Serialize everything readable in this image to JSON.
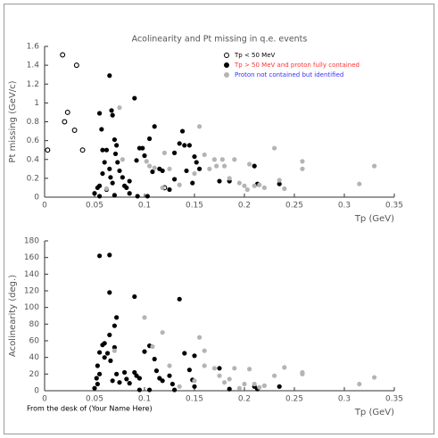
{
  "chart_data": [
    {
      "type": "scatter",
      "title": "Acolinearity and Pt missing in q.e. events",
      "x_label": "Tp (GeV)",
      "y_label": "Pt missing (GeV/c)",
      "xlim": [
        0,
        0.35
      ],
      "ylim": [
        0,
        1.6
      ],
      "xticks": [
        0,
        0.05,
        0.1,
        0.15,
        0.2,
        0.25,
        0.3,
        0.35
      ],
      "yticks": [
        0,
        0.2,
        0.4,
        0.6,
        0.8,
        1,
        1.2,
        1.4,
        1.6
      ],
      "series": [
        {
          "name": "Tp < 50 MeV",
          "color": "#000000",
          "marker": "open",
          "legend_text_color": "#000000",
          "x": [
            0.003,
            0.018,
            0.032,
            0.02,
            0.023,
            0.03,
            0.038,
            0.12
          ],
          "y": [
            0.5,
            1.51,
            1.4,
            0.8,
            0.9,
            0.71,
            0.5,
            0.1
          ]
        },
        {
          "name": "Tp > 50 MeV and proton fully contained",
          "color": "#000000",
          "marker": "filled",
          "legend_text_color": "#ff3333",
          "x": [
            0.055,
            0.057,
            0.058,
            0.062,
            0.06,
            0.058,
            0.055,
            0.053,
            0.055,
            0.065,
            0.066,
            0.068,
            0.065,
            0.067,
            0.068,
            0.07,
            0.072,
            0.071,
            0.073,
            0.075,
            0.078,
            0.08,
            0.082,
            0.085,
            0.09,
            0.092,
            0.095,
            0.098,
            0.1,
            0.105,
            0.108,
            0.11,
            0.115,
            0.118,
            0.125,
            0.13,
            0.135,
            0.138,
            0.14,
            0.145,
            0.142,
            0.148,
            0.15,
            0.152,
            0.155,
            0.085,
            0.093,
            0.103,
            0.13,
            0.175,
            0.185,
            0.21,
            0.213,
            0.235,
            0.05,
            0.062,
            0.07
          ],
          "y": [
            0.89,
            0.72,
            0.5,
            0.5,
            0.37,
            0.25,
            0.12,
            0.1,
            0.01,
            0.3,
            0.21,
            0.15,
            1.29,
            0.92,
            0.87,
            0.61,
            0.55,
            0.46,
            0.37,
            0.28,
            0.21,
            0.12,
            0.1,
            0.17,
            1.05,
            0.39,
            0.52,
            0.52,
            0.44,
            0.62,
            0.27,
            0.75,
            0.3,
            0.28,
            0.08,
            0.47,
            0.57,
            0.7,
            0.55,
            0.55,
            0.28,
            0.15,
            0.43,
            0.37,
            0.3,
            0.04,
            0.01,
            0.01,
            0.19,
            0.17,
            0.17,
            0.33,
            0.14,
            0.14,
            0.04,
            0.08,
            0.02
          ]
        },
        {
          "name": "Proton not contained but identified",
          "color": "#b4b4b4",
          "marker": "filled",
          "legend_text_color": "#3333ff",
          "x": [
            0.075,
            0.078,
            0.102,
            0.105,
            0.11,
            0.12,
            0.125,
            0.15,
            0.155,
            0.16,
            0.165,
            0.17,
            0.172,
            0.18,
            0.178,
            0.185,
            0.19,
            0.195,
            0.2,
            0.203,
            0.205,
            0.21,
            0.215,
            0.22,
            0.23,
            0.235,
            0.258,
            0.258,
            0.315,
            0.33,
            0.24,
            0.118,
            0.062,
            0.135
          ],
          "y": [
            0.95,
            0.4,
            0.38,
            0.33,
            0.31,
            0.47,
            0.3,
            0.25,
            0.75,
            0.45,
            0.3,
            0.4,
            0.33,
            0.33,
            0.4,
            0.2,
            0.4,
            0.15,
            0.12,
            0.08,
            0.35,
            0.12,
            0.13,
            0.1,
            0.52,
            0.18,
            0.38,
            0.3,
            0.14,
            0.33,
            0.09,
            0.1,
            0.09,
            0.13
          ]
        }
      ]
    },
    {
      "type": "scatter",
      "x_label": "Tp (GeV)",
      "y_label": "Acolinearity (deg.)",
      "xlim": [
        0,
        0.35
      ],
      "ylim": [
        0,
        180
      ],
      "xticks": [
        0,
        0.05,
        0.1,
        0.15,
        0.2,
        0.25,
        0.3,
        0.35
      ],
      "yticks": [
        0,
        20,
        40,
        60,
        80,
        100,
        120,
        140,
        160,
        180
      ],
      "series": [
        {
          "color": "#000000",
          "marker": "filled",
          "x": [
            0.055,
            0.065,
            0.065,
            0.09,
            0.135,
            0.072,
            0.07,
            0.065,
            0.06,
            0.058,
            0.055,
            0.053,
            0.055,
            0.052,
            0.05,
            0.053,
            0.06,
            0.063,
            0.066,
            0.07,
            0.068,
            0.072,
            0.075,
            0.08,
            0.082,
            0.085,
            0.09,
            0.092,
            0.095,
            0.1,
            0.105,
            0.11,
            0.112,
            0.115,
            0.118,
            0.125,
            0.128,
            0.14,
            0.145,
            0.148,
            0.15,
            0.15,
            0.095,
            0.105,
            0.13,
            0.175,
            0.185,
            0.21,
            0.213,
            0.235
          ],
          "y": [
            162,
            163,
            118,
            113,
            110,
            88,
            78,
            67,
            57,
            55,
            46,
            30,
            20,
            15,
            3,
            8,
            40,
            45,
            36,
            52,
            12,
            20,
            10,
            22,
            14,
            9,
            22,
            18,
            15,
            47,
            54,
            38,
            24,
            15,
            12,
            18,
            8,
            45,
            25,
            13,
            42,
            5,
            1,
            1,
            1,
            27,
            2,
            5,
            2,
            5
          ]
        },
        {
          "color": "#b4b4b4",
          "marker": "filled",
          "x": [
            0.07,
            0.1,
            0.108,
            0.118,
            0.155,
            0.16,
            0.16,
            0.17,
            0.175,
            0.18,
            0.185,
            0.19,
            0.195,
            0.2,
            0.205,
            0.21,
            0.215,
            0.22,
            0.23,
            0.24,
            0.258,
            0.258,
            0.315,
            0.33,
            0.125,
            0.15,
            0.135
          ],
          "y": [
            48,
            88,
            53,
            70,
            64,
            48,
            30,
            27,
            18,
            10,
            14,
            27,
            3,
            8,
            26,
            8,
            4,
            6,
            18,
            28,
            20,
            22,
            8,
            16,
            30,
            12,
            5
          ]
        }
      ]
    }
  ],
  "footer": "From the desk of (Your Name Here)"
}
